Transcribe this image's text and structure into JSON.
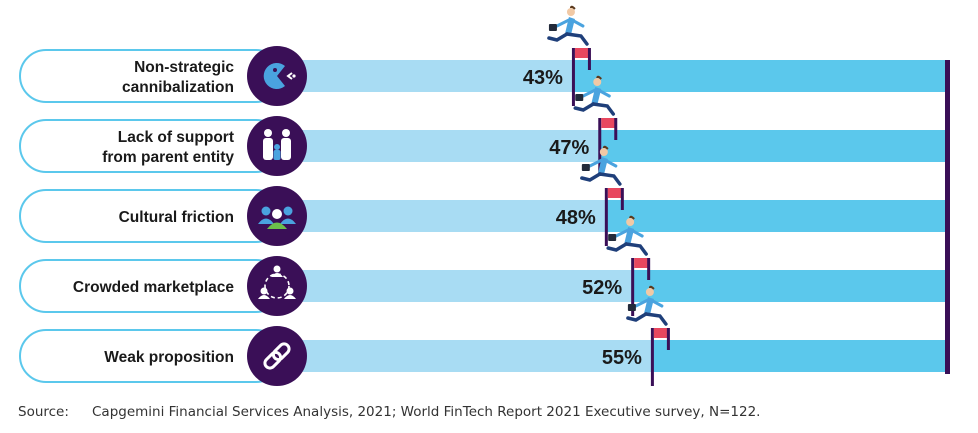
{
  "colors": {
    "bar_light": "#a8dcf3",
    "bar_dark": "#5bc8ec",
    "icon_bg": "#3a0f57",
    "pill_border": "#5bc8ec",
    "hurdle_bar": "#e8475f",
    "hurdle_post": "#3a0f57",
    "end_line": "#3a0f57",
    "runner_shirt": "#4aa3df",
    "runner_pants": "#1f3f7a"
  },
  "chart_data": {
    "type": "bar",
    "orientation": "horizontal",
    "categories": [
      "Non-strategic cannibalization",
      "Lack of support from parent entity",
      "Cultural friction",
      "Crowded marketplace",
      "Weak proposition"
    ],
    "category_lines": [
      [
        "Non-strategic",
        "cannibalization"
      ],
      [
        "Lack of support",
        "from parent entity"
      ],
      [
        "Cultural friction"
      ],
      [
        "Crowded marketplace"
      ],
      [
        "Weak proposition"
      ]
    ],
    "values": [
      43,
      47,
      48,
      52,
      55
    ],
    "value_labels": [
      "43%",
      "47%",
      "48%",
      "52%",
      "55%"
    ],
    "icons": [
      "pacman-icon",
      "family-icon",
      "group-icon",
      "network-icon",
      "link-icon"
    ],
    "xlim": [
      0,
      100
    ],
    "grid": false,
    "legend": "none"
  },
  "footer": {
    "source_label": "Source:",
    "source_text": "Capgemini Financial Services Analysis, 2021; World FinTech Report 2021 Executive survey, N=122."
  }
}
